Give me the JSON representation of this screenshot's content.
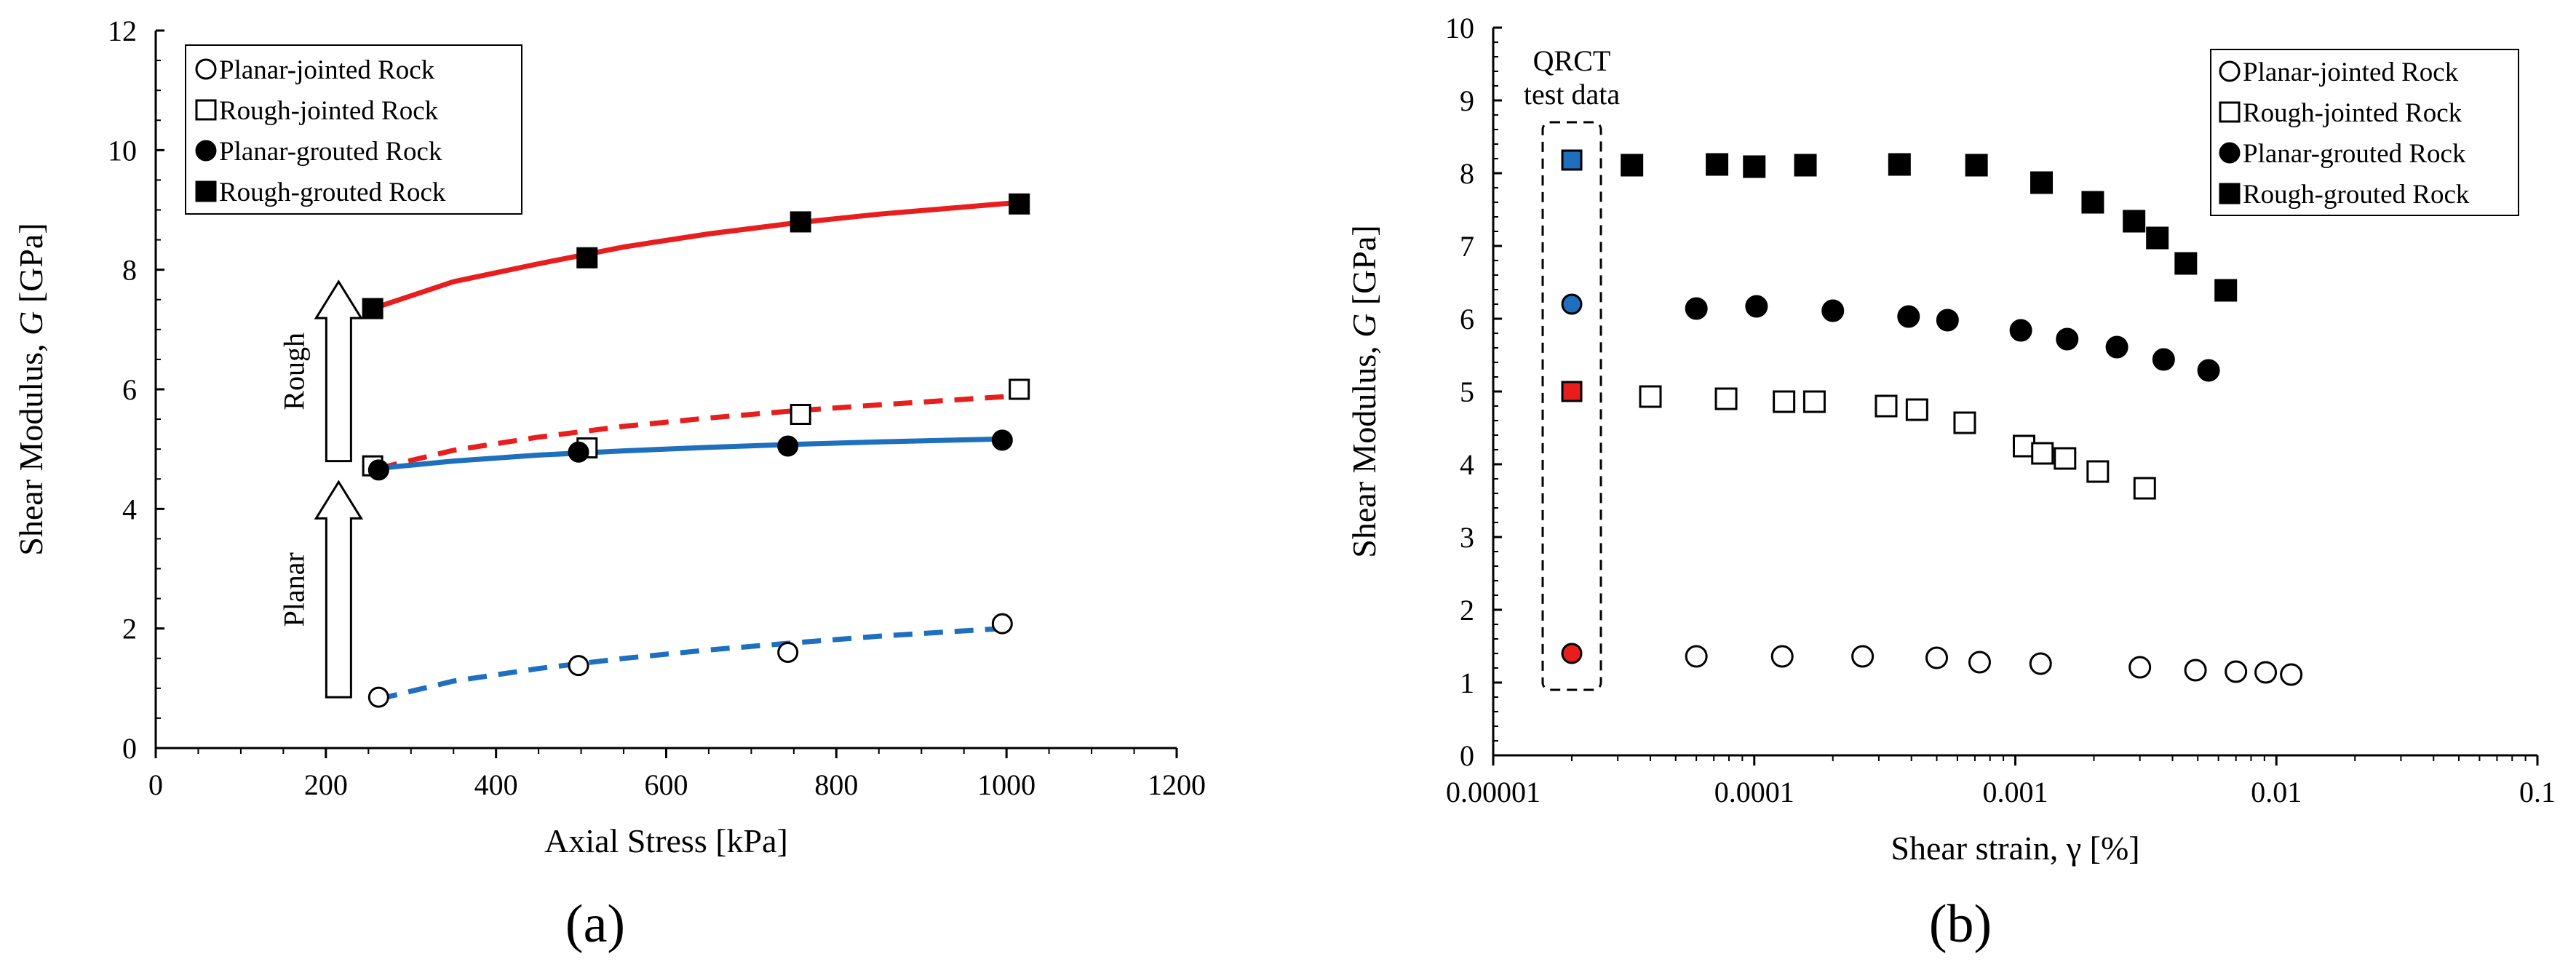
{
  "chart_data": [
    {
      "type": "scatter",
      "panel_label": "(a)",
      "xlabel": "Axial Stress [kPa]",
      "ylabel_prefix": "Shear Modulus, ",
      "ylabel_var": "G",
      "ylabel_suffix": " [GPa]",
      "xlim": [
        0,
        1200
      ],
      "ylim": [
        0,
        12
      ],
      "xticks": [
        0,
        200,
        400,
        600,
        800,
        1000,
        1200
      ],
      "yticks": [
        0,
        2,
        4,
        6,
        8,
        10,
        12
      ],
      "legend_position": "top-left",
      "series": [
        {
          "name": "Planar-jointed Rock",
          "marker": "circle-open",
          "x": [
            262,
            497,
            743,
            995
          ],
          "y": [
            0.85,
            1.38,
            1.6,
            2.08
          ]
        },
        {
          "name": "Rough-jointed Rock",
          "marker": "square-open",
          "x": [
            255,
            507,
            758,
            1015
          ],
          "y": [
            4.72,
            5.02,
            5.58,
            6.0
          ]
        },
        {
          "name": "Planar-grouted Rock",
          "marker": "circle-filled",
          "x": [
            262,
            497,
            743,
            995
          ],
          "y": [
            4.65,
            4.95,
            5.05,
            5.15
          ]
        },
        {
          "name": "Rough-grouted Rock",
          "marker": "square-filled",
          "x": [
            255,
            507,
            758,
            1015
          ],
          "y": [
            7.35,
            8.2,
            8.8,
            9.1
          ]
        }
      ],
      "trendlines": [
        {
          "series": "Planar-jointed Rock",
          "color": "#1f6fbf",
          "style": "dashed",
          "x": [
            262,
            350,
            450,
            550,
            650,
            750,
            850,
            995
          ],
          "y": [
            0.82,
            1.12,
            1.33,
            1.5,
            1.64,
            1.76,
            1.87,
            2.0
          ]
        },
        {
          "series": "Rough-jointed Rock",
          "color": "#e81e1e",
          "style": "dashed",
          "x": [
            262,
            350,
            450,
            550,
            650,
            750,
            850,
            1000
          ],
          "y": [
            4.68,
            4.98,
            5.2,
            5.38,
            5.52,
            5.64,
            5.74,
            5.88
          ]
        },
        {
          "series": "Planar-grouted Rock",
          "color": "#1f6fbf",
          "style": "solid",
          "x": [
            262,
            350,
            450,
            550,
            650,
            750,
            850,
            995
          ],
          "y": [
            4.68,
            4.8,
            4.9,
            4.97,
            5.03,
            5.08,
            5.12,
            5.17
          ]
        },
        {
          "series": "Rough-grouted Rock",
          "color": "#e81e1e",
          "style": "solid",
          "x": [
            255,
            350,
            450,
            550,
            650,
            750,
            850,
            1010
          ],
          "y": [
            7.35,
            7.8,
            8.1,
            8.38,
            8.6,
            8.78,
            8.93,
            9.12
          ]
        }
      ],
      "annotations": [
        {
          "text": "Rough",
          "arrow": "up",
          "x": 215,
          "y_from": 4.8,
          "y_to": 7.8
        },
        {
          "text": "Planar",
          "arrow": "up",
          "x": 215,
          "y_from": 0.85,
          "y_to": 4.45
        }
      ]
    },
    {
      "type": "scatter",
      "panel_label": "(b)",
      "xscale": "log",
      "xlabel": "Shear strain, γ [%]",
      "ylabel_prefix": "Shear Modulus, ",
      "ylabel_var": "G",
      "ylabel_suffix": " [GPa]",
      "xlim": [
        1e-05,
        0.1
      ],
      "ylim": [
        0,
        10
      ],
      "xticks": [
        1e-05,
        0.0001,
        0.001,
        0.01,
        0.1
      ],
      "xtick_labels": [
        "0.00001",
        "0.0001",
        "0.001",
        "0.01",
        "0.1"
      ],
      "yticks": [
        0,
        1,
        2,
        3,
        4,
        5,
        6,
        7,
        8,
        9,
        10
      ],
      "legend_position": "top-right",
      "series": [
        {
          "name": "Planar-jointed Rock",
          "marker": "circle-open",
          "x": [
            6e-05,
            0.000128,
            0.00026,
            0.0005,
            0.00073,
            0.00125,
            0.003,
            0.0049,
            0.007,
            0.0091,
            0.0114
          ],
          "y": [
            1.36,
            1.36,
            1.36,
            1.34,
            1.28,
            1.26,
            1.21,
            1.17,
            1.15,
            1.14,
            1.11
          ]
        },
        {
          "name": "Rough-jointed Rock",
          "marker": "square-open",
          "x": [
            4e-05,
            7.8e-05,
            0.00013,
            0.00017,
            0.00032,
            0.00042,
            0.00064,
            0.00108,
            0.00127,
            0.00155,
            0.00207,
            0.00313
          ],
          "y": [
            4.93,
            4.9,
            4.86,
            4.86,
            4.8,
            4.75,
            4.57,
            4.25,
            4.15,
            4.08,
            3.9,
            3.67
          ]
        },
        {
          "name": "Planar-grouted Rock",
          "marker": "circle-filled",
          "x": [
            6e-05,
            0.000102,
            0.0002,
            0.00039,
            0.00055,
            0.00105,
            0.00158,
            0.00245,
            0.0037,
            0.0055
          ],
          "y": [
            6.14,
            6.17,
            6.11,
            6.03,
            5.98,
            5.84,
            5.72,
            5.61,
            5.44,
            5.29
          ]
        },
        {
          "name": "Rough-grouted Rock",
          "marker": "square-filled",
          "x": [
            3.4e-05,
            7.2e-05,
            0.0001,
            0.000157,
            0.00036,
            0.00071,
            0.00126,
            0.00198,
            0.00285,
            0.0035,
            0.0045,
            0.0064
          ],
          "y": [
            8.11,
            8.12,
            8.09,
            8.11,
            8.12,
            8.11,
            7.87,
            7.6,
            7.34,
            7.11,
            6.76,
            6.39
          ]
        }
      ],
      "qrct": {
        "label_line1": "QRCT",
        "label_line2": "test data",
        "x": 2e-05,
        "points": [
          {
            "y": 8.18,
            "color": "#1f6fbf",
            "marker": "square"
          },
          {
            "y": 6.2,
            "color": "#1f6fbf",
            "marker": "circle"
          },
          {
            "y": 5.0,
            "color": "#e81e1e",
            "marker": "square"
          },
          {
            "y": 1.4,
            "color": "#e81e1e",
            "marker": "circle"
          }
        ]
      }
    }
  ]
}
